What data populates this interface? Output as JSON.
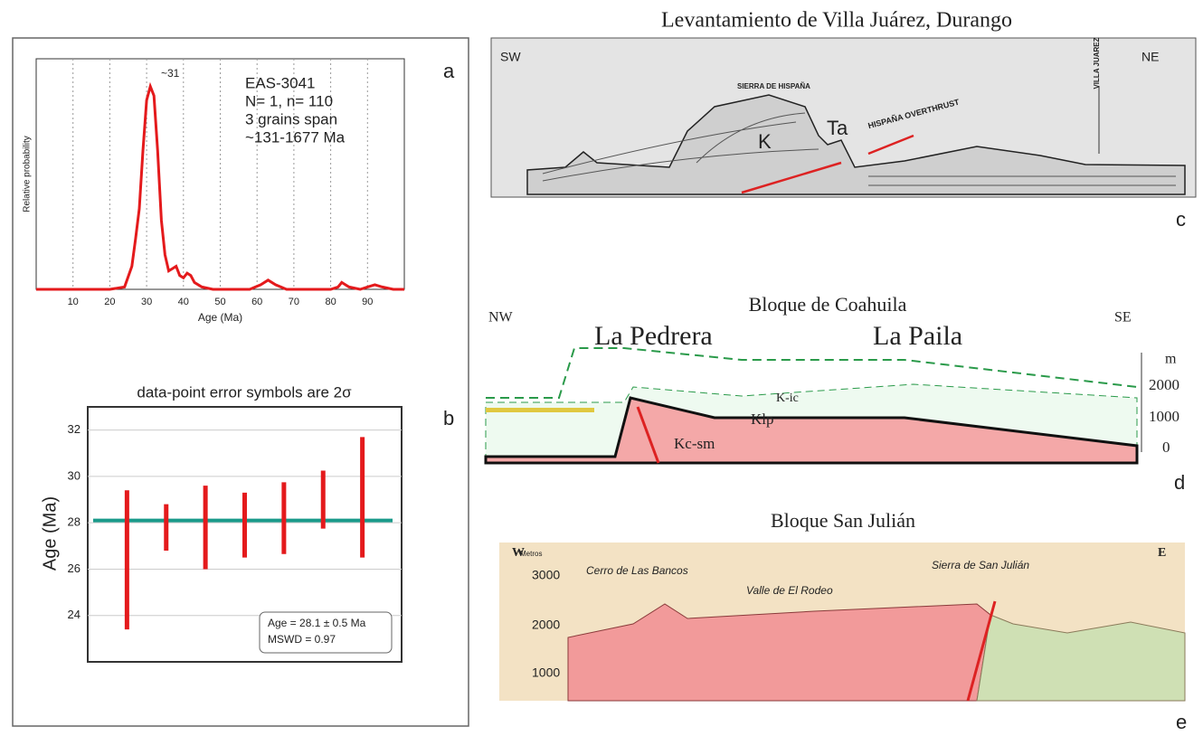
{
  "chart_data": [
    {
      "type": "line",
      "annotation": "~31",
      "info": [
        "EAS-3041",
        "N= 1, n= 110",
        "3 grains span",
        "~131-1677 Ma"
      ],
      "y_label": "Relative probability",
      "x_label": "Age (Ma)",
      "x": [
        0,
        20,
        24,
        26,
        27,
        28,
        29,
        30,
        31,
        32,
        33,
        34,
        35,
        36,
        37,
        38,
        39,
        40,
        41,
        42,
        43,
        45,
        48,
        58,
        61,
        63,
        65,
        68,
        80,
        82,
        83,
        85,
        88,
        90,
        92,
        94,
        97,
        100
      ],
      "values": [
        0,
        0,
        0.01,
        0.1,
        0.22,
        0.35,
        0.6,
        0.82,
        0.88,
        0.84,
        0.6,
        0.3,
        0.15,
        0.08,
        0.09,
        0.1,
        0.06,
        0.05,
        0.07,
        0.06,
        0.03,
        0.01,
        0,
        0,
        0.02,
        0.04,
        0.02,
        0,
        0,
        0.01,
        0.03,
        0.01,
        0,
        0.01,
        0.02,
        0.01,
        0,
        0
      ],
      "color": "#e41a1c",
      "xlim": [
        0,
        100
      ],
      "ylim": [
        0,
        1
      ],
      "xticks": [
        10,
        20,
        30,
        40,
        50,
        60,
        70,
        80,
        90
      ],
      "grid": true
    },
    {
      "type": "errorbar",
      "title": "data-point error symbols are 2σ",
      "y_label": "Age (Ma)",
      "x": [
        1,
        2,
        3,
        4,
        5,
        6,
        7
      ],
      "values": [
        26.4,
        27.8,
        27.8,
        27.9,
        28.2,
        29.0,
        29.1
      ],
      "errors": [
        3.0,
        1.0,
        1.8,
        1.4,
        1.55,
        1.25,
        2.6
      ],
      "color": "#e41a1c",
      "mean": 28.1,
      "mean_color": "#1a9a8a",
      "stats": [
        "Age = 28.1 ± 0.5 Ma",
        "MSWD = 0.97"
      ],
      "xlim": [
        0,
        8
      ],
      "ylim": [
        22,
        33
      ],
      "yticks": [
        24,
        26,
        28,
        30,
        32
      ],
      "grid": true
    }
  ],
  "panel_labels": [
    "a",
    "b",
    "c",
    "d",
    "e"
  ],
  "sections": [
    {
      "title": "Levantamiento de Villa Juárez, Durango",
      "labels": [
        "SW",
        "NE",
        "SIERRA DE HISPAÑA",
        "K",
        "Ta",
        "HISPAÑA OVERTHRUST",
        "VILLA JUAREZ"
      ]
    },
    {
      "title": "Bloque de Coahuila",
      "labels": [
        "NW",
        "SE",
        "La Pedrera",
        "La Paila",
        "m",
        "2000",
        "1000",
        "0",
        "Kc-sm",
        "Klp",
        "K-ic"
      ]
    },
    {
      "title": "Bloque San Julián",
      "labels": [
        "W",
        "E",
        "Metros",
        "3000",
        "2000",
        "1000",
        "Cerro de Las Bancos",
        "Sierra de San Julián",
        "Valle de El Rodeo"
      ]
    }
  ]
}
